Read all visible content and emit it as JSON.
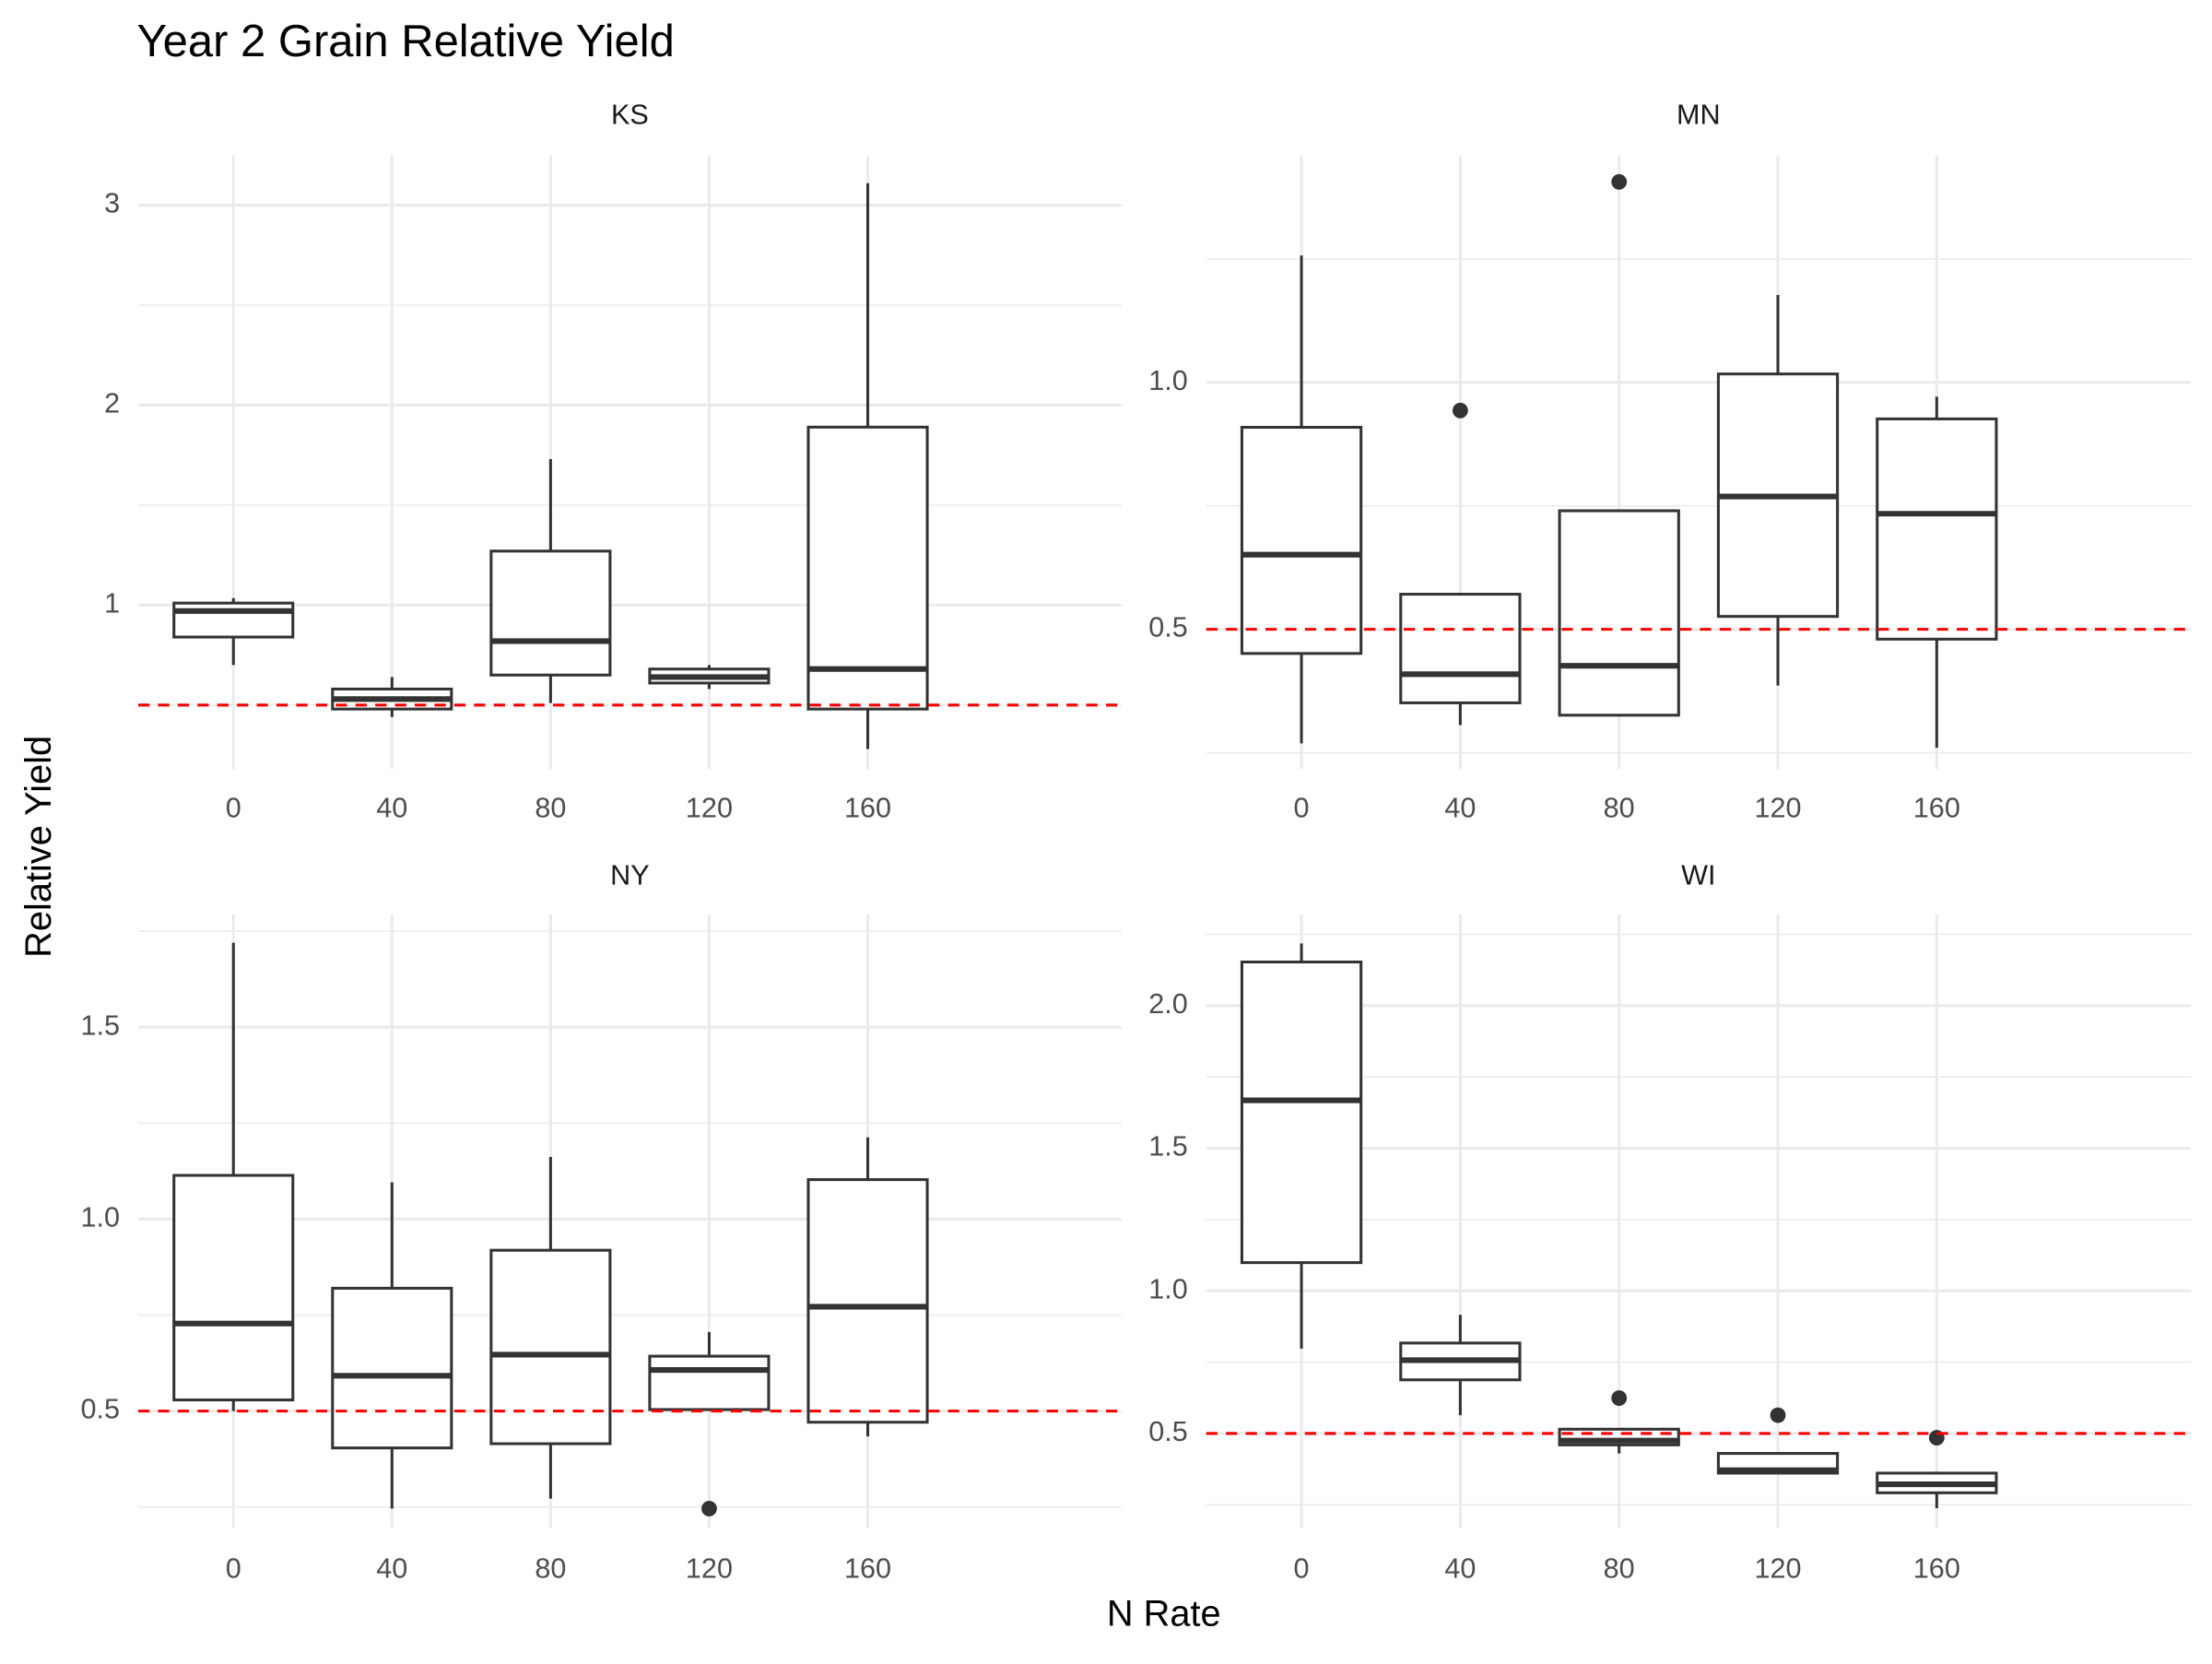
{
  "title": "Year 2 Grain Relative Yield",
  "xlabel": "N Rate",
  "ylabel": "Relative Yield",
  "chart_data": [
    {
      "type": "box",
      "title": "KS",
      "categories": [
        "0",
        "40",
        "80",
        "120",
        "160"
      ],
      "whisker_low": [
        0.7,
        0.44,
        0.51,
        0.58,
        0.28
      ],
      "q1": [
        0.84,
        0.48,
        0.65,
        0.61,
        0.48
      ],
      "median": [
        0.97,
        0.53,
        0.82,
        0.64,
        0.68
      ],
      "q3": [
        1.01,
        0.58,
        1.27,
        0.68,
        1.89
      ],
      "whisker_high": [
        1.035,
        0.64,
        1.73,
        0.7,
        3.11
      ],
      "outliers": [
        [],
        [],
        [],
        [],
        []
      ],
      "ylim": [
        0.18,
        3.25
      ],
      "yticks": [
        1,
        2,
        3
      ],
      "hline": 0.5,
      "hline_color": "#ff0000",
      "color": "#333333",
      "grid": true
    },
    {
      "type": "box",
      "title": "MN",
      "categories": [
        "0",
        "40",
        "80",
        "120",
        "160"
      ],
      "whisker_low": [
        0.269,
        0.306,
        0.326,
        0.386,
        0.26
      ],
      "q1": [
        0.451,
        0.351,
        0.326,
        0.526,
        0.48
      ],
      "median": [
        0.651,
        0.409,
        0.426,
        0.769,
        0.734
      ],
      "q3": [
        0.909,
        0.571,
        0.74,
        1.017,
        0.926
      ],
      "whisker_high": [
        1.257,
        0.571,
        0.74,
        1.177,
        0.971
      ],
      "outliers": [
        [],
        [
          0.943
        ],
        [
          1.406
        ],
        [],
        []
      ],
      "ylim": [
        0.217,
        1.46
      ],
      "yticks": [
        0.5,
        {
          "value": 1,
          "label": "1.0"
        }
      ],
      "hline": 0.5,
      "hline_color": "#ff0000",
      "color": "#333333",
      "grid": true
    },
    {
      "type": "box",
      "title": "NY",
      "categories": [
        "0",
        "40",
        "80",
        "120",
        "160"
      ],
      "whisker_low": [
        0.5,
        0.246,
        0.272,
        0.5,
        0.434
      ],
      "q1": [
        0.529,
        0.404,
        0.415,
        0.504,
        0.471
      ],
      "median": [
        0.728,
        0.592,
        0.647,
        0.607,
        0.772
      ],
      "q3": [
        1.114,
        0.82,
        0.919,
        0.643,
        1.103
      ],
      "whisker_high": [
        1.72,
        1.096,
        1.162,
        0.706,
        1.213
      ],
      "outliers": [
        [],
        [],
        [],
        [
          0.246
        ],
        []
      ],
      "ylim": [
        0.195,
        1.794
      ],
      "yticks": [
        0.5,
        {
          "value": 1,
          "label": "1.0"
        },
        1.5
      ],
      "hline": 0.5,
      "hline_color": "#ff0000",
      "color": "#333333",
      "grid": true
    },
    {
      "type": "box",
      "title": "WI",
      "categories": [
        "0",
        "40",
        "80",
        "120",
        "160"
      ],
      "whisker_low": [
        0.797,
        0.564,
        0.43,
        0.361,
        0.238
      ],
      "q1": [
        1.099,
        0.688,
        0.46,
        0.361,
        0.292
      ],
      "median": [
        1.668,
        0.757,
        0.475,
        0.371,
        0.322
      ],
      "q3": [
        2.153,
        0.817,
        0.515,
        0.43,
        0.361
      ],
      "whisker_high": [
        2.218,
        0.916,
        0.515,
        0.43,
        0.361
      ],
      "outliers": [
        [],
        [],
        [
          0.624
        ],
        [
          0.564
        ],
        [
          0.485
        ]
      ],
      "ylim": [
        0.168,
        2.32
      ],
      "yticks": [
        0.5,
        {
          "value": 1,
          "label": "1.0"
        },
        1.5,
        {
          "value": 2,
          "label": "2.0"
        }
      ],
      "hline": 0.5,
      "hline_color": "#ff0000",
      "color": "#333333",
      "grid": true
    }
  ]
}
